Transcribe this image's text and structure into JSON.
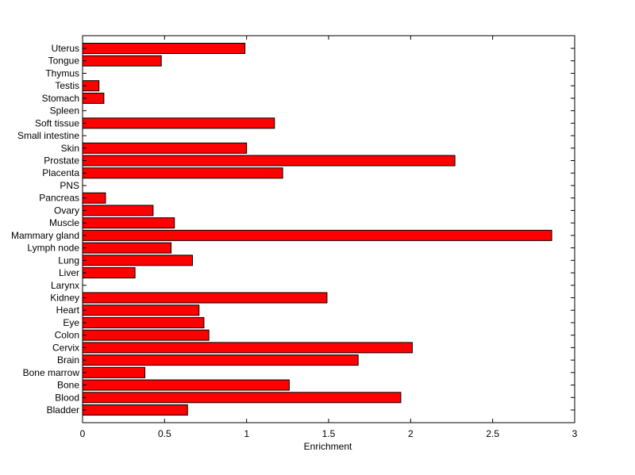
{
  "chart_data": {
    "type": "bar",
    "orientation": "horizontal",
    "title": "",
    "xlabel": "Enrichment",
    "ylabel": "",
    "xlim": [
      0,
      3
    ],
    "xticks": [
      "0",
      "0.5",
      "1",
      "1.5",
      "2",
      "2.5",
      "3"
    ],
    "grid": false,
    "legend": "none",
    "bar_color": "#ff0000",
    "bar_edge_color": "#000000",
    "categories": [
      "Bladder",
      "Blood",
      "Bone",
      "Bone marrow",
      "Brain",
      "Cervix",
      "Colon",
      "Eye",
      "Heart",
      "Kidney",
      "Larynx",
      "Liver",
      "Lung",
      "Lymph node",
      "Mammary gland",
      "Muscle",
      "Ovary",
      "Pancreas",
      "PNS",
      "Placenta",
      "Prostate",
      "Skin",
      "Small intestine",
      "Soft tissue",
      "Spleen",
      "Stomach",
      "Testis",
      "Thymus",
      "Tongue",
      "Uterus"
    ],
    "values": [
      0.64,
      1.94,
      1.26,
      0.38,
      1.68,
      2.01,
      0.77,
      0.74,
      0.71,
      1.49,
      0,
      0.32,
      0.67,
      0.54,
      2.86,
      0.56,
      0.43,
      0.14,
      0,
      1.22,
      2.27,
      1.0,
      0,
      1.17,
      0,
      0.13,
      0.1,
      0,
      0.48,
      0.99
    ]
  }
}
